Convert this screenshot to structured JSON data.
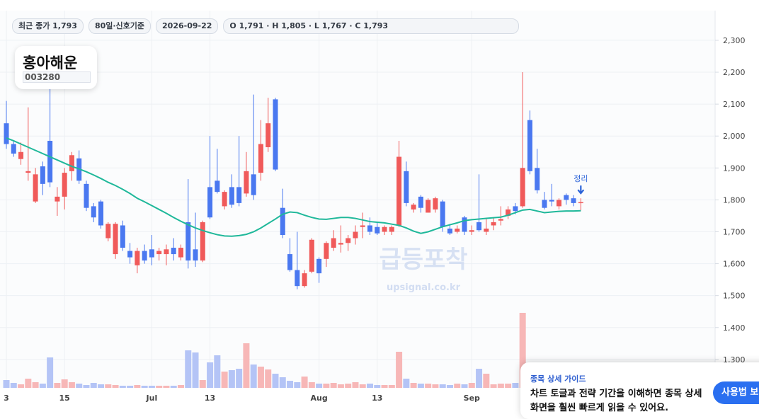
{
  "chart_data": {
    "type": "candlestick",
    "categories": [
      "3",
      null,
      null,
      null,
      null,
      null,
      null,
      null,
      "15",
      null,
      null,
      null,
      null,
      null,
      null,
      null,
      null,
      null,
      null,
      null,
      "Jul",
      null,
      null,
      null,
      null,
      null,
      null,
      null,
      "13",
      null,
      null,
      null,
      null,
      null,
      null,
      null,
      null,
      null,
      null,
      null,
      null,
      null,
      null,
      "Aug",
      null,
      null,
      null,
      null,
      null,
      null,
      null,
      "13",
      null,
      null,
      null,
      null,
      null,
      null,
      null,
      null,
      null,
      null,
      null,
      null,
      "Sep",
      null,
      null,
      null,
      null,
      null,
      null,
      null,
      null,
      null,
      null,
      null,
      null,
      null,
      null,
      null
    ],
    "open": [
      2040,
      1975,
      1928,
      1885,
      1795,
      1905,
      1985,
      1795,
      1810,
      1890,
      1930,
      1850,
      1780,
      1795,
      1680,
      1630,
      1720,
      1640,
      1595,
      1640,
      1645,
      1630,
      1630,
      1650,
      1620,
      1730,
      1645,
      1610,
      1840,
      1860,
      1780,
      1840,
      1840,
      1820,
      1880,
      1885,
      1965,
      2115,
      1775,
      1630,
      1580,
      1530,
      1575,
      1615,
      1615,
      1650,
      1660,
      1665,
      1680,
      1715,
      1720,
      1715,
      1700,
      1700,
      1720,
      1890,
      1770,
      1810,
      1760,
      1770,
      1795,
      1710,
      1700,
      1745,
      1700,
      1730,
      1700,
      1720,
      1735,
      1750,
      1780,
      1780,
      2050,
      1900,
      1800,
      1800,
      1780,
      1815,
      1805,
      1791
    ],
    "high": [
      2110,
      1985,
      1980,
      2090,
      1900,
      1920,
      2160,
      1840,
      1900,
      1950,
      1955,
      1860,
      1790,
      1800,
      1730,
      1730,
      1735,
      1665,
      1650,
      1660,
      1690,
      1650,
      1660,
      1680,
      1660,
      1865,
      1760,
      1735,
      2000,
      1960,
      1830,
      1880,
      2000,
      1950,
      2130,
      2050,
      2120,
      2120,
      1835,
      1680,
      1700,
      1580,
      1680,
      1620,
      1670,
      1705,
      1720,
      1690,
      1720,
      1760,
      1745,
      1730,
      1720,
      1720,
      1985,
      1920,
      1790,
      1815,
      1805,
      1810,
      1800,
      1725,
      1720,
      1750,
      1720,
      1880,
      1740,
      1745,
      1780,
      1780,
      1790,
      2200,
      2080,
      1960,
      1825,
      1850,
      1805,
      1820,
      1815,
      1805
    ],
    "low": [
      1960,
      1935,
      1910,
      1860,
      1790,
      1815,
      1840,
      1750,
      1770,
      1860,
      1850,
      1765,
      1730,
      1710,
      1670,
      1615,
      1640,
      1600,
      1570,
      1600,
      1595,
      1610,
      1595,
      1610,
      1610,
      1585,
      1590,
      1605,
      1740,
      1820,
      1770,
      1775,
      1780,
      1810,
      1800,
      1860,
      1950,
      1890,
      1680,
      1575,
      1520,
      1525,
      1570,
      1540,
      1590,
      1640,
      1635,
      1640,
      1660,
      1680,
      1690,
      1690,
      1690,
      1690,
      1715,
      1780,
      1760,
      1760,
      1760,
      1760,
      1700,
      1690,
      1695,
      1690,
      1690,
      1700,
      1690,
      1705,
      1720,
      1740,
      1755,
      1775,
      1880,
      1820,
      1770,
      1780,
      1770,
      1785,
      1780,
      1767
    ],
    "close": [
      1975,
      1945,
      1950,
      1890,
      1880,
      1850,
      1855,
      1810,
      1885,
      1940,
      1860,
      1775,
      1745,
      1720,
      1725,
      1725,
      1650,
      1620,
      1640,
      1610,
      1620,
      1640,
      1645,
      1630,
      1650,
      1610,
      1610,
      1730,
      1745,
      1825,
      1825,
      1785,
      1790,
      1890,
      1815,
      1975,
      2040,
      1895,
      1690,
      1580,
      1530,
      1570,
      1675,
      1570,
      1665,
      1680,
      1665,
      1680,
      1700,
      1720,
      1700,
      1695,
      1715,
      1715,
      1935,
      1790,
      1785,
      1775,
      1800,
      1805,
      1715,
      1695,
      1710,
      1700,
      1705,
      1705,
      1710,
      1730,
      1740,
      1770,
      1765,
      1900,
      1890,
      1830,
      1775,
      1795,
      1800,
      1800,
      1790,
      1793
    ],
    "volume": [
      11,
      7,
      5,
      13,
      8,
      6,
      43,
      7,
      12,
      8,
      6,
      4,
      7,
      5,
      5,
      4,
      3,
      3,
      4,
      3,
      3,
      3,
      3,
      3,
      4,
      53,
      50,
      11,
      36,
      46,
      23,
      25,
      27,
      63,
      33,
      30,
      26,
      20,
      15,
      10,
      8,
      16,
      8,
      6,
      6,
      7,
      5,
      6,
      8,
      5,
      6,
      4,
      4,
      4,
      51,
      13,
      7,
      6,
      6,
      5,
      5,
      4,
      6,
      5,
      7,
      27,
      20,
      5,
      6,
      6,
      7,
      106,
      14,
      12,
      8,
      6,
      5,
      6,
      6,
      5
    ],
    "vlim": [
      0,
      110
    ],
    "ma": {
      "color": "#1fb89a",
      "values": [
        1994,
        1985,
        1975,
        1965,
        1955,
        1945,
        1935,
        1925,
        1915,
        1905,
        1897,
        1888,
        1878,
        1867,
        1855,
        1845,
        1833,
        1820,
        1805,
        1794,
        1782,
        1770,
        1758,
        1745,
        1733,
        1722,
        1712,
        1704,
        1697,
        1691,
        1687,
        1686,
        1688,
        1692,
        1700,
        1712,
        1726,
        1740,
        1755,
        1762,
        1760,
        1752,
        1745,
        1740,
        1739,
        1742,
        1745,
        1745,
        1742,
        1737,
        1732,
        1730,
        1728,
        1724,
        1720,
        1712,
        1702,
        1695,
        1700,
        1708,
        1716,
        1722,
        1728,
        1735,
        1738,
        1740,
        1742,
        1744,
        1746,
        1752,
        1760,
        1768,
        1770,
        1765,
        1760,
        1762,
        1764,
        1765,
        1765,
        1766
      ]
    },
    "up_color": "#f05a5a",
    "down_color": "#4a78f0",
    "up_volume_color": "#f7b7b7",
    "down_volume_color": "#b4c4f6",
    "ylim": [
      1211,
      2393
    ],
    "yticks": [
      {
        "value": 1300,
        "label": "1,300"
      },
      {
        "value": 1400,
        "label": "1,400"
      },
      {
        "value": 1500,
        "label": "1,500"
      },
      {
        "value": 1600,
        "label": "1,600"
      },
      {
        "value": 1700,
        "label": "1,700"
      },
      {
        "value": 1800,
        "label": "1,800"
      },
      {
        "value": 1900,
        "label": "1,900"
      },
      {
        "value": 2000,
        "label": "2,000"
      },
      {
        "value": 2100,
        "label": "2,100"
      },
      {
        "value": 2200,
        "label": "2,200"
      },
      {
        "value": 2300,
        "label": "2,300"
      }
    ],
    "grid": true,
    "annotation": {
      "text": "정리",
      "index": 79,
      "color": "#2a62d8"
    },
    "watermark": {
      "title": "급등포착",
      "site": "upsignal.co.kr"
    }
  },
  "ui": {
    "chips": [
      "최근 종가 1,793",
      "80일·신호기준",
      "2026-09-22",
      "O 1,791 · H 1,805 · L 1,767 · C 1,793"
    ],
    "stock_name": "홍아해운",
    "stock_code": "003280",
    "guide": {
      "title": "종목 상세 가이드",
      "line1": "차트 토글과 전략 기간을 이해하면 종목 상세",
      "line2": "화면을 훨씬 빠르게 읽을 수 있어요.",
      "button": "사용법 보기"
    }
  }
}
